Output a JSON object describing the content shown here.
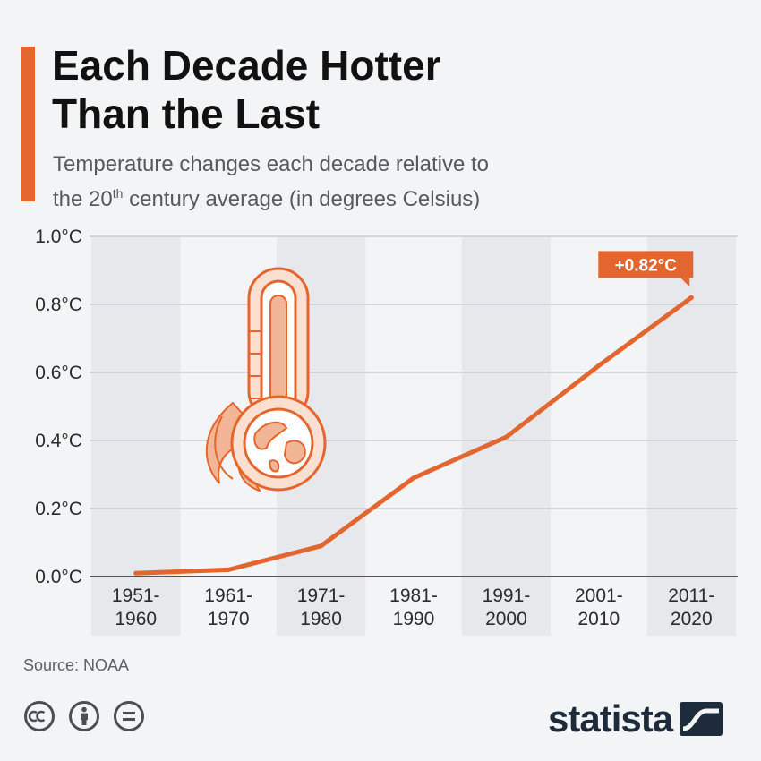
{
  "header": {
    "title_line1": "Each Decade Hotter",
    "title_line2": "Than the Last",
    "subtitle_part1": "Temperature changes each decade relative to",
    "subtitle_part2": "the 20",
    "subtitle_sup": "th",
    "subtitle_part3": " century average (in degrees Celsius)"
  },
  "chart_data": {
    "type": "line",
    "title": "Each Decade Hotter Than the Last",
    "subtitle": "Temperature changes each decade relative to the 20th century average (in degrees Celsius)",
    "categories": [
      "1951-\n1960",
      "1961-\n1970",
      "1971-\n1980",
      "1981-\n1990",
      "1991-\n2000",
      "2001-\n2010",
      "2011-\n2020"
    ],
    "series": [
      {
        "values": [
          0.01,
          0.02,
          0.09,
          0.29,
          0.41,
          0.62,
          0.82
        ]
      }
    ],
    "y_ticks": [
      "0.0°C",
      "0.2°C",
      "0.4°C",
      "0.6°C",
      "0.8°C",
      "1.0°C"
    ],
    "ylim": [
      0,
      1.0
    ],
    "grid": true,
    "annotation": {
      "text": "+0.82°C",
      "category_index": 6
    },
    "line_color": "#e3662f"
  },
  "footer": {
    "source": "Source: NOAA",
    "brand": "statista"
  },
  "colors": {
    "accent": "#e3662f",
    "background": "#f3f4f6",
    "band": "#e6e8eb",
    "brand_dark": "#1d2b3a"
  },
  "icons": [
    "thermometer-globe-icon",
    "cc-icon",
    "attribution-icon",
    "no-derivatives-icon",
    "statista-logo-icon"
  ]
}
